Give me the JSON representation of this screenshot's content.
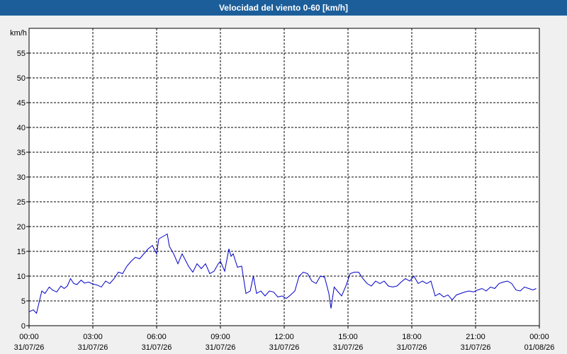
{
  "window": {
    "title": "Velocidad del viento 0-60 [km/h]"
  },
  "colors": {
    "titlebar": "#1c5e9a",
    "series": "#0000c8",
    "grid": "#000000",
    "plot_background": "#ffffff",
    "window_background": "#f0f0f0"
  },
  "chart_data": {
    "type": "line",
    "title": "Velocidad del viento 0-60 [km/h]",
    "ylabel": "km/h",
    "xlabel": "",
    "ylim": [
      0,
      60
    ],
    "xlim_hours": [
      0,
      24
    ],
    "grid": true,
    "y_ticks": [
      "0",
      "5",
      "10",
      "15",
      "20",
      "25",
      "30",
      "35",
      "40",
      "45",
      "50",
      "55"
    ],
    "x_ticks": [
      {
        "time": "00:00",
        "date": "31/07/26"
      },
      {
        "time": "03:00",
        "date": "31/07/26"
      },
      {
        "time": "06:00",
        "date": "31/07/26"
      },
      {
        "time": "09:00",
        "date": "31/07/26"
      },
      {
        "time": "12:00",
        "date": "31/07/26"
      },
      {
        "time": "15:00",
        "date": "31/07/26"
      },
      {
        "time": "18:00",
        "date": "31/07/26"
      },
      {
        "time": "21:00",
        "date": "31/07/26"
      },
      {
        "time": "00:00",
        "date": "01/08/26"
      }
    ],
    "series": [
      {
        "x": [
          0.0,
          0.2,
          0.35,
          0.6,
          0.75,
          0.95,
          1.1,
          1.3,
          1.5,
          1.65,
          1.8,
          1.95,
          2.1,
          2.25,
          2.45,
          2.6,
          2.8,
          3.0,
          3.2,
          3.4,
          3.6,
          3.8,
          4.0,
          4.2,
          4.4,
          4.6,
          4.8,
          5.0,
          5.2,
          5.4,
          5.6,
          5.8,
          6.0,
          6.1,
          6.3,
          6.5,
          6.6,
          6.8,
          7.0,
          7.2,
          7.5,
          7.7,
          7.9,
          8.1,
          8.3,
          8.5,
          8.7,
          8.9,
          9.0,
          9.2,
          9.4,
          9.5,
          9.6,
          9.8,
          10.0,
          10.2,
          10.4,
          10.55,
          10.7,
          10.9,
          11.1,
          11.3,
          11.5,
          11.7,
          11.9,
          12.1,
          12.3,
          12.5,
          12.7,
          12.9,
          13.1,
          13.3,
          13.5,
          13.7,
          13.9,
          14.1,
          14.2,
          14.35,
          14.5,
          14.7,
          14.9,
          15.1,
          15.3,
          15.5,
          15.7,
          15.9,
          16.1,
          16.3,
          16.5,
          16.7,
          16.9,
          17.1,
          17.3,
          17.5,
          17.7,
          17.9,
          18.1,
          18.3,
          18.5,
          18.7,
          18.9,
          19.1,
          19.3,
          19.5,
          19.7,
          19.9,
          20.1,
          20.3,
          20.5,
          20.7,
          20.9,
          21.1,
          21.3,
          21.5,
          21.7,
          21.9,
          22.1,
          22.3,
          22.5,
          22.7,
          22.9,
          23.1,
          23.3,
          23.5,
          23.7,
          23.85
        ],
        "values": [
          2.8,
          3.2,
          2.5,
          7.0,
          6.5,
          7.8,
          7.2,
          6.8,
          8.0,
          7.5,
          8.0,
          9.5,
          8.5,
          8.3,
          9.2,
          8.6,
          8.8,
          8.4,
          8.2,
          7.8,
          9.0,
          8.5,
          9.5,
          10.8,
          10.5,
          12.0,
          13.0,
          13.8,
          13.5,
          14.5,
          15.5,
          16.2,
          14.5,
          17.5,
          18.0,
          18.5,
          16.0,
          14.5,
          12.5,
          14.5,
          12.0,
          10.8,
          12.5,
          11.5,
          12.5,
          10.5,
          11.0,
          12.5,
          13.0,
          11.0,
          15.5,
          14.0,
          14.5,
          11.8,
          12.0,
          6.5,
          7.0,
          10.0,
          6.5,
          7.0,
          6.0,
          7.0,
          6.8,
          5.8,
          6.0,
          5.5,
          6.2,
          7.0,
          10.0,
          10.8,
          10.5,
          9.0,
          8.5,
          10.0,
          9.8,
          6.5,
          3.5,
          7.8,
          7.0,
          6.0,
          8.0,
          10.5,
          10.8,
          10.8,
          9.5,
          8.5,
          8.0,
          9.0,
          8.5,
          9.0,
          8.0,
          7.8,
          8.0,
          8.8,
          9.5,
          9.0,
          10.0,
          8.5,
          9.0,
          8.5,
          9.0,
          6.0,
          6.5,
          5.8,
          6.2,
          5.2,
          6.2,
          6.5,
          6.8,
          7.0,
          6.8,
          7.2,
          7.5,
          7.0,
          7.8,
          7.5,
          8.5,
          8.8,
          9.0,
          8.5,
          7.2,
          7.0,
          7.8,
          7.5,
          7.2,
          7.5
        ]
      }
    ]
  }
}
